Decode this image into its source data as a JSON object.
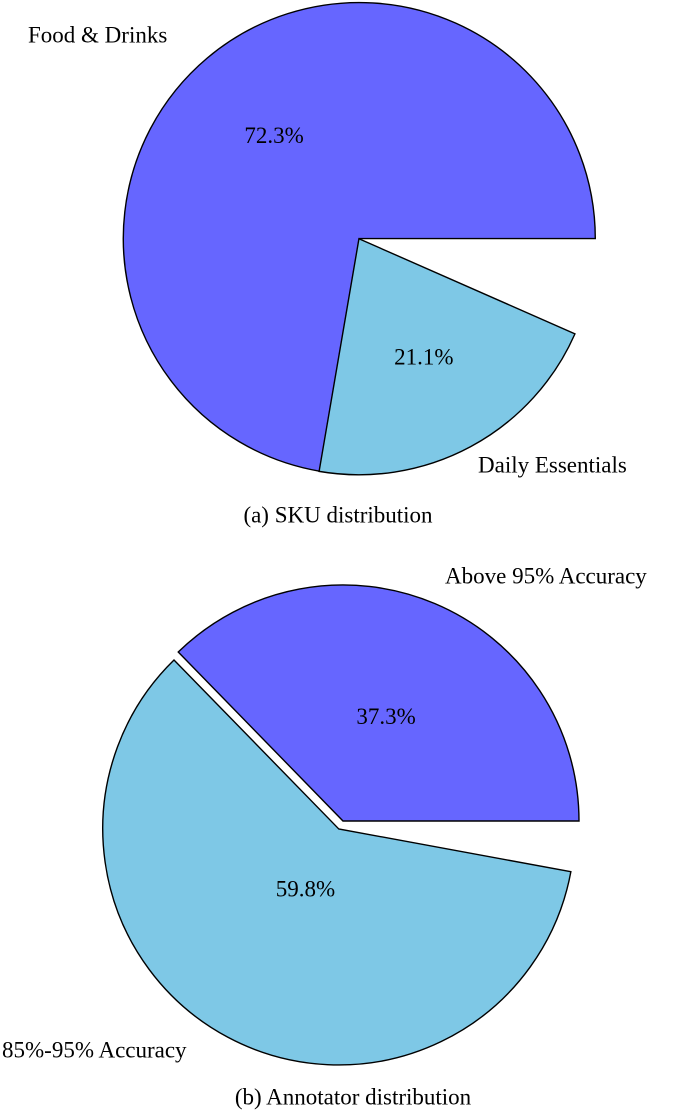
{
  "chart_data": [
    {
      "type": "pie",
      "caption": "(a)  SKU distribution",
      "slices": [
        {
          "label": "Food & Drinks",
          "value": 72.3,
          "value_label": "72.3%",
          "color": "#6666ff",
          "exploded": false
        },
        {
          "label": "Daily Essentials",
          "value": 21.1,
          "value_label": "21.1%",
          "color": "#7ec8e6",
          "exploded": true
        }
      ],
      "start_angle_deg": 0,
      "direction": "counterclockwise"
    },
    {
      "type": "pie",
      "caption": "(b)  Annotator distribution",
      "slices": [
        {
          "label": "Above 95% Accuracy",
          "value": 37.3,
          "value_label": "37.3%",
          "color": "#6666ff",
          "exploded": false
        },
        {
          "label": "85%-95% Accuracy",
          "value": 59.8,
          "value_label": "59.8%",
          "color": "#7ec8e6",
          "exploded": true
        }
      ],
      "start_angle_deg": 0,
      "direction": "counterclockwise"
    }
  ]
}
